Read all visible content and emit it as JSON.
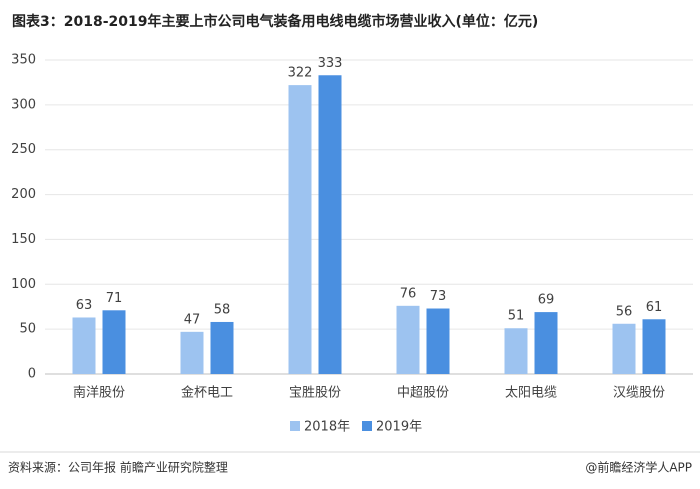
{
  "chart_data": {
    "type": "bar",
    "title": "图表3：2018-2019年主要上市公司电气装备用电线电缆市场营业收入(单位：亿元)",
    "categories": [
      "南洋股份",
      "金杯电工",
      "宝胜股份",
      "中超股份",
      "太阳电缆",
      "汉缆股份"
    ],
    "series": [
      {
        "name": "2018年",
        "color": "#9dc3f0",
        "values": [
          63,
          47,
          322,
          76,
          51,
          56
        ]
      },
      {
        "name": "2019年",
        "color": "#4a8fe0",
        "values": [
          71,
          58,
          333,
          73,
          69,
          61
        ]
      }
    ],
    "ylim": [
      0,
      350
    ],
    "yticks": [
      0,
      50,
      100,
      150,
      200,
      250,
      300,
      350
    ],
    "grid": true,
    "legend": "bottom",
    "source": "资料来源：公司年报 前瞻产业研究院整理",
    "credit": "@前瞻经济学人APP"
  }
}
